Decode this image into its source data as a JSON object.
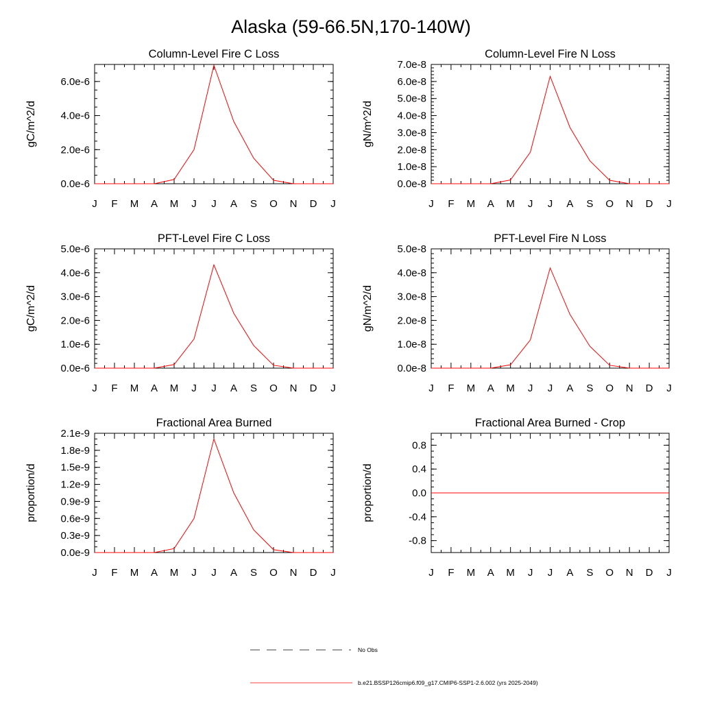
{
  "title": "Alaska (59-66.5N,170-140W)",
  "colors": {
    "model": "#ff0000",
    "obs": "#000000",
    "axis": "#000000"
  },
  "legend": {
    "obs_label": "No Obs",
    "model_label": "b.e21.BSSP126cmip6.f09_g17.CMIP6-SSP1-2.6.002 (yrs 2025-2049)"
  },
  "chart_data": [
    {
      "type": "line",
      "title": "Column-Level Fire C Loss",
      "xlabel": "",
      "ylabel": "gC/m^2/d",
      "x": [
        "J",
        "F",
        "M",
        "A",
        "M",
        "J",
        "J",
        "A",
        "S",
        "O",
        "N",
        "D",
        "J"
      ],
      "ylim": [
        0,
        7e-06
      ],
      "yticks": [
        0,
        2e-06,
        4e-06,
        6e-06
      ],
      "ytick_labels": [
        "0.0e-6",
        "2.0e-6",
        "4.0e-6",
        "6.0e-6"
      ],
      "yminor_step": 5e-07,
      "grid": false,
      "series": [
        {
          "values": [
            0,
            0,
            0,
            0,
            2.5e-07,
            2e-06,
            6.95e-06,
            3.65e-06,
            1.5e-06,
            2e-07,
            0,
            0,
            0
          ]
        }
      ]
    },
    {
      "type": "line",
      "title": "Column-Level Fire N Loss",
      "xlabel": "",
      "ylabel": "gN/m^2/d",
      "x": [
        "J",
        "F",
        "M",
        "A",
        "M",
        "J",
        "J",
        "A",
        "S",
        "O",
        "N",
        "D",
        "J"
      ],
      "ylim": [
        0,
        7e-08
      ],
      "yticks": [
        0,
        1e-08,
        2e-08,
        3e-08,
        4e-08,
        5e-08,
        6e-08,
        7e-08
      ],
      "ytick_labels": [
        "0.0e-8",
        "1.0e-8",
        "2.0e-8",
        "3.0e-8",
        "4.0e-8",
        "5.0e-8",
        "6.0e-8",
        "7.0e-8"
      ],
      "yminor_step": 2e-09,
      "grid": false,
      "series": [
        {
          "values": [
            0,
            0,
            0,
            0,
            2.2e-09,
            1.85e-08,
            6.3e-08,
            3.3e-08,
            1.35e-08,
            2e-09,
            0,
            0,
            0
          ]
        }
      ]
    },
    {
      "type": "line",
      "title": "PFT-Level Fire C Loss",
      "xlabel": "",
      "ylabel": "gC/m^2/d",
      "x": [
        "J",
        "F",
        "M",
        "A",
        "M",
        "J",
        "J",
        "A",
        "S",
        "O",
        "N",
        "D",
        "J"
      ],
      "ylim": [
        0,
        5e-06
      ],
      "yticks": [
        0,
        1e-06,
        2e-06,
        3e-06,
        4e-06,
        5e-06
      ],
      "ytick_labels": [
        "0.0e-6",
        "1.0e-6",
        "2.0e-6",
        "3.0e-6",
        "4.0e-6",
        "5.0e-6"
      ],
      "yminor_step": 2e-07,
      "grid": false,
      "series": [
        {
          "values": [
            0,
            0,
            0,
            0,
            1.5e-07,
            1.22e-06,
            4.33e-06,
            2.3e-06,
            9.5e-07,
            1.2e-07,
            0,
            0,
            0
          ]
        }
      ]
    },
    {
      "type": "line",
      "title": "PFT-Level Fire N Loss",
      "xlabel": "",
      "ylabel": "gN/m^2/d",
      "x": [
        "J",
        "F",
        "M",
        "A",
        "M",
        "J",
        "J",
        "A",
        "S",
        "O",
        "N",
        "D",
        "J"
      ],
      "ylim": [
        0,
        5e-08
      ],
      "yticks": [
        0,
        1e-08,
        2e-08,
        3e-08,
        4e-08,
        5e-08
      ],
      "ytick_labels": [
        "0.0e-8",
        "1.0e-8",
        "2.0e-8",
        "3.0e-8",
        "4.0e-8",
        "5.0e-8"
      ],
      "yminor_step": 2e-09,
      "grid": false,
      "series": [
        {
          "values": [
            0,
            0,
            0,
            0,
            1.4e-09,
            1.18e-08,
            4.2e-08,
            2.25e-08,
            9.2e-09,
            1.2e-09,
            0,
            0,
            0
          ]
        }
      ]
    },
    {
      "type": "line",
      "title": "Fractional Area Burned",
      "xlabel": "",
      "ylabel": "proportion/d",
      "x": [
        "J",
        "F",
        "M",
        "A",
        "M",
        "J",
        "J",
        "A",
        "S",
        "O",
        "N",
        "D",
        "J"
      ],
      "ylim": [
        0,
        2.1e-09
      ],
      "yticks": [
        0,
        3e-10,
        6e-10,
        9e-10,
        1.2e-09,
        1.5e-09,
        1.8e-09,
        2.1e-09
      ],
      "ytick_labels": [
        "0.0e-9",
        "0.3e-9",
        "0.6e-9",
        "0.9e-9",
        "1.2e-9",
        "1.5e-9",
        "1.8e-9",
        "2.1e-9"
      ],
      "yminor_step": 1e-10,
      "grid": false,
      "series": [
        {
          "values": [
            0,
            0,
            0,
            0,
            7e-11,
            6e-10,
            2e-09,
            1.05e-09,
            4e-10,
            5e-11,
            0,
            0,
            0
          ]
        }
      ]
    },
    {
      "type": "line",
      "title": "Fractional Area Burned - Crop",
      "xlabel": "",
      "ylabel": "proportion/d",
      "x": [
        "J",
        "F",
        "M",
        "A",
        "M",
        "J",
        "J",
        "A",
        "S",
        "O",
        "N",
        "D",
        "J"
      ],
      "ylim": [
        -1.0,
        1.0
      ],
      "yticks": [
        -0.8,
        -0.4,
        0.0,
        0.4,
        0.8
      ],
      "ytick_labels": [
        "-0.8",
        "-0.4",
        "0.0",
        "0.4",
        "0.8"
      ],
      "yminor_step": 0.1,
      "grid": false,
      "zero_line": true,
      "series": [
        {
          "values": [
            0,
            0,
            0,
            0,
            0,
            0,
            0,
            0,
            0,
            0,
            0,
            0,
            0
          ]
        }
      ]
    }
  ]
}
